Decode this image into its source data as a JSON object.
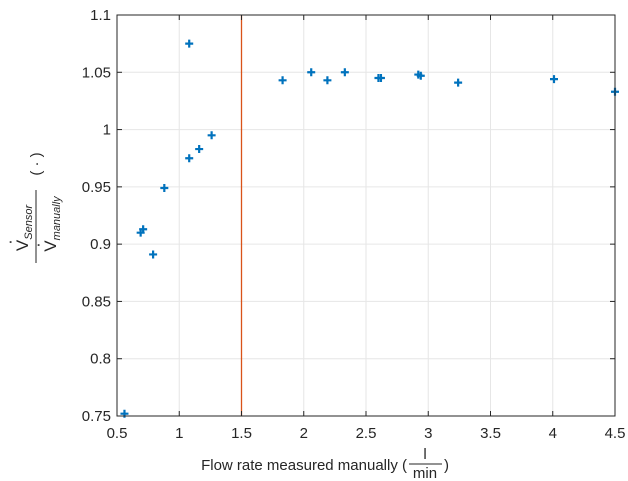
{
  "chart_data": {
    "type": "scatter",
    "xlabel": {
      "prefix": "Flow rate measured manually (",
      "unit_numerator": "l",
      "unit_denominator": "min",
      "suffix": ")"
    },
    "ylabel": {
      "numerator_symbol": "V",
      "numerator_subscript": "Sensor",
      "denominator_symbol": "V",
      "denominator_subscript": "manually",
      "unit": "( · )"
    },
    "xlim": [
      0.5,
      4.5
    ],
    "ylim": [
      0.75,
      1.1
    ],
    "x_ticks": [
      "0.5",
      "1",
      "1.5",
      "2",
      "2.5",
      "3",
      "3.5",
      "4",
      "4.5"
    ],
    "y_ticks": [
      "0.75",
      "0.8",
      "0.85",
      "0.9",
      "0.95",
      "1",
      "1.05",
      "1.1"
    ],
    "grid": true,
    "marker": "plus",
    "marker_color": "#0072bd",
    "vline": {
      "x": 1.5,
      "color": "#d95319"
    },
    "points": [
      [
        0.56,
        0.752
      ],
      [
        0.69,
        0.91
      ],
      [
        0.71,
        0.913
      ],
      [
        0.79,
        0.891
      ],
      [
        0.88,
        0.949
      ],
      [
        1.08,
        0.975
      ],
      [
        1.08,
        1.075
      ],
      [
        1.16,
        0.983
      ],
      [
        1.26,
        0.995
      ],
      [
        1.83,
        1.043
      ],
      [
        2.06,
        1.05
      ],
      [
        2.19,
        1.043
      ],
      [
        2.33,
        1.05
      ],
      [
        2.6,
        1.045
      ],
      [
        2.62,
        1.045
      ],
      [
        2.92,
        1.048
      ],
      [
        2.94,
        1.047
      ],
      [
        3.24,
        1.041
      ],
      [
        4.01,
        1.044
      ],
      [
        4.5,
        1.033
      ]
    ]
  }
}
